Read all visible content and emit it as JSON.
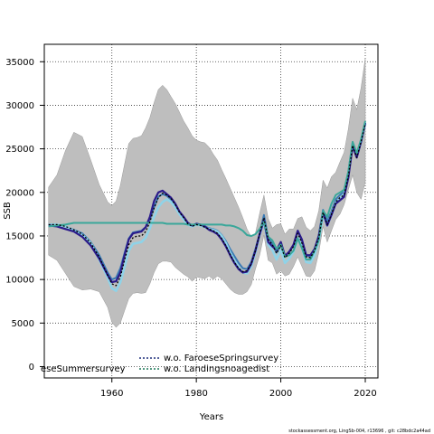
{
  "chart_data": {
    "type": "line",
    "xlabel": "Years",
    "ylabel": "SSB",
    "xlim": [
      1944,
      2023
    ],
    "ylim": [
      -1300,
      37000
    ],
    "x_ticks": [
      1960,
      1980,
      2000,
      2020
    ],
    "y_ticks": [
      0,
      5000,
      10000,
      15000,
      20000,
      25000,
      30000,
      35000
    ],
    "grid": true,
    "legend_position": "bottom-left",
    "legend_entries": [
      {
        "label": "eseSummersurvey",
        "color": "#3a7ab4",
        "style": "solid"
      },
      {
        "label": "w.o. FaroeseSpringsurvey",
        "color": "#1f2f7a",
        "style": "dotted"
      },
      {
        "label": "w.o. Landingsnoagedist",
        "color": "#1f7a5a",
        "style": "dotted"
      }
    ],
    "footer": "stockassessment.org, LingSb-004, r13696 , git: c28bdc2a44ad",
    "colors": {
      "band": "#bebebe",
      "base": "#000000",
      "summer": "#3a7ab4",
      "light": "#8fd3e8",
      "spring": "#2a1a8a",
      "teal": "#3aa79a"
    },
    "ci_upper": {
      "x": [
        1945,
        1947,
        1949,
        1951,
        1953,
        1955,
        1957,
        1959,
        1960,
        1961,
        1962,
        1963,
        1964,
        1965,
        1966,
        1967,
        1968,
        1969,
        1970,
        1971,
        1972,
        1973,
        1974,
        1975,
        1976,
        1977,
        1978,
        1979,
        1980,
        1981,
        1982,
        1983,
        1984,
        1985,
        1986,
        1987,
        1988,
        1989,
        1990,
        1991,
        1992,
        1993,
        1994,
        1995,
        1996,
        1997,
        1998,
        1999,
        2000,
        2001,
        2002,
        2003,
        2004,
        2005,
        2006,
        2007,
        2008,
        2009,
        2010,
        2011,
        2012,
        2013,
        2014,
        2015,
        2016,
        2017,
        2018,
        2019,
        2020
      ],
      "y": [
        20600,
        22000,
        24800,
        26900,
        26400,
        23700,
        20900,
        18900,
        18500,
        19000,
        20800,
        23200,
        25600,
        26200,
        26300,
        26500,
        27400,
        28600,
        30300,
        31800,
        32300,
        31800,
        31000,
        30200,
        29200,
        28200,
        27400,
        26500,
        26000,
        25800,
        25700,
        25200,
        24400,
        23700,
        22600,
        21600,
        20500,
        19400,
        18300,
        17100,
        15800,
        14900,
        15300,
        17600,
        19700,
        17000,
        15900,
        16300,
        16400,
        15200,
        15800,
        15800,
        17000,
        17200,
        16000,
        15600,
        16100,
        17900,
        21400,
        20500,
        21800,
        22300,
        23500,
        24600,
        27300,
        30800,
        29500,
        32000,
        35400
      ]
    },
    "ci_lower": {
      "x": [
        1945,
        1947,
        1949,
        1951,
        1953,
        1955,
        1957,
        1959,
        1960,
        1961,
        1962,
        1963,
        1964,
        1965,
        1966,
        1967,
        1968,
        1969,
        1970,
        1971,
        1972,
        1973,
        1974,
        1975,
        1976,
        1977,
        1978,
        1979,
        1980,
        1981,
        1982,
        1983,
        1984,
        1985,
        1986,
        1987,
        1988,
        1989,
        1990,
        1991,
        1992,
        1993,
        1994,
        1995,
        1996,
        1997,
        1998,
        1999,
        2000,
        2001,
        2002,
        2003,
        2004,
        2005,
        2006,
        2007,
        2008,
        2009,
        2010,
        2011,
        2012,
        2013,
        2014,
        2015,
        2016,
        2017,
        2018,
        2019,
        2020
      ],
      "y": [
        12800,
        12200,
        10700,
        9200,
        8800,
        8900,
        8600,
        6800,
        5100,
        4500,
        5000,
        6400,
        7800,
        8400,
        8500,
        8400,
        8500,
        9500,
        10800,
        11800,
        12100,
        12100,
        12000,
        11400,
        11000,
        10600,
        10300,
        9800,
        10300,
        10200,
        10100,
        10400,
        10000,
        10400,
        10100,
        9500,
        8900,
        8500,
        8300,
        8300,
        8600,
        9400,
        11200,
        12800,
        15100,
        12200,
        11900,
        10600,
        11000,
        10400,
        10600,
        11500,
        12600,
        11500,
        10400,
        10300,
        11000,
        13100,
        16100,
        14300,
        15600,
        16900,
        17500,
        18600,
        20300,
        22000,
        20000,
        19200,
        21200
      ]
    },
    "series": [
      {
        "key": "summer",
        "x": [
          1945,
          1947,
          1949,
          1951,
          1953,
          1955,
          1957,
          1959,
          1960,
          1961,
          1962,
          1963,
          1964,
          1965,
          1966,
          1967,
          1968,
          1969,
          1970,
          1971,
          1972,
          1973,
          1974,
          1975,
          1976,
          1977,
          1978,
          1979,
          1980,
          1981,
          1982,
          1983,
          1984,
          1985,
          1986,
          1987,
          1988,
          1989,
          1990,
          1991,
          1992,
          1993,
          1994,
          1995,
          1996,
          1997,
          1998,
          1999,
          2000,
          2001,
          2002,
          2003,
          2004,
          2005,
          2006,
          2007,
          2008,
          2009,
          2010,
          2011,
          2012,
          2013,
          2014,
          2015,
          2016,
          2017,
          2018,
          2019,
          2020
        ],
        "y": [
          16300,
          16300,
          16100,
          15700,
          15300,
          14300,
          12800,
          10800,
          10000,
          10200,
          11300,
          13000,
          14700,
          15400,
          15500,
          15600,
          16000,
          16900,
          18300,
          19500,
          19800,
          19600,
          19200,
          18600,
          17700,
          17100,
          16400,
          16200,
          16400,
          16300,
          16100,
          15900,
          15800,
          15600,
          15100,
          14400,
          13500,
          12700,
          11900,
          11300,
          11200,
          12000,
          13500,
          15300,
          17400,
          14800,
          14100,
          13100,
          14000,
          12700,
          13200,
          13900,
          15600,
          14500,
          12800,
          12600,
          13400,
          15100,
          18000,
          16700,
          17800,
          19200,
          19700,
          20100,
          22400,
          25700,
          24300,
          26000,
          28000
        ]
      },
      {
        "key": "light",
        "x": [
          1945,
          1947,
          1949,
          1951,
          1953,
          1955,
          1957,
          1959,
          1960,
          1961,
          1962,
          1963,
          1964,
          1965,
          1966,
          1967,
          1968,
          1969,
          1970,
          1971,
          1972,
          1973,
          1974,
          1975,
          1976,
          1977,
          1978,
          1979,
          1980,
          1981,
          1982,
          1983,
          1984,
          1985,
          1986,
          1987,
          1988,
          1989,
          1990,
          1991,
          1992,
          1993,
          1994,
          1995,
          1996,
          1997,
          1998,
          1999,
          2000,
          2001,
          2002,
          2003,
          2004,
          2005,
          2006,
          2007,
          2008,
          2009,
          2010,
          2011,
          2012,
          2013,
          2014,
          2015,
          2016,
          2017,
          2018,
          2019,
          2020
        ],
        "y": [
          16300,
          16300,
          16100,
          15600,
          15100,
          14200,
          12300,
          10200,
          9000,
          8700,
          9700,
          11400,
          13300,
          14100,
          14200,
          14300,
          14800,
          15900,
          17200,
          18300,
          18900,
          19200,
          18900,
          18300,
          17500,
          16900,
          16300,
          16100,
          16300,
          16200,
          16000,
          15800,
          15700,
          15500,
          15000,
          14200,
          13100,
          12200,
          11400,
          10800,
          10700,
          11500,
          13100,
          15100,
          16700,
          14000,
          13400,
          12300,
          13400,
          11900,
          12400,
          13200,
          14800,
          13700,
          12000,
          11900,
          12800,
          14500,
          17500,
          16200,
          17400,
          18800,
          19300,
          19800,
          22100,
          25500,
          24200,
          25800,
          27900
        ]
      },
      {
        "key": "spring",
        "x": [
          1945,
          1947,
          1949,
          1951,
          1953,
          1955,
          1957,
          1959,
          1960,
          1961,
          1962,
          1963,
          1964,
          1965,
          1966,
          1967,
          1968,
          1969,
          1970,
          1971,
          1972,
          1973,
          1974,
          1975,
          1976,
          1977,
          1978,
          1979,
          1980,
          1981,
          1982,
          1983,
          1984,
          1985,
          1986,
          1987,
          1988,
          1989,
          1990,
          1991,
          1992,
          1993,
          1994,
          1995,
          1996,
          1997,
          1998,
          1999,
          2000,
          2001,
          2002,
          2003,
          2004,
          2005,
          2006,
          2007,
          2008,
          2009,
          2010,
          2011,
          2012,
          2013,
          2014,
          2015,
          2016,
          2017,
          2018,
          2019,
          2020
        ],
        "y": [
          16200,
          16100,
          15800,
          15500,
          14900,
          13900,
          12400,
          10500,
          9700,
          9800,
          10800,
          12800,
          14600,
          15300,
          15400,
          15500,
          16000,
          17200,
          19000,
          20000,
          20200,
          19800,
          19400,
          18700,
          17800,
          17200,
          16500,
          16200,
          16400,
          16300,
          16100,
          15700,
          15500,
          15200,
          14600,
          13800,
          12800,
          11900,
          11200,
          10800,
          10900,
          11800,
          13300,
          15200,
          16800,
          14300,
          13800,
          13400,
          14300,
          12700,
          13200,
          14000,
          15600,
          14600,
          12800,
          12800,
          13500,
          15000,
          17700,
          16200,
          17400,
          18700,
          19100,
          19500,
          21700,
          25300,
          24000,
          25800,
          28000
        ]
      },
      {
        "key": "teal",
        "x": [
          1945,
          1947,
          1949,
          1951,
          1953,
          1955,
          1957,
          1959,
          1960,
          1961,
          1962,
          1963,
          1964,
          1965,
          1966,
          1967,
          1968,
          1969,
          1970,
          1971,
          1972,
          1973,
          1974,
          1975,
          1976,
          1977,
          1978,
          1979,
          1980,
          1981,
          1982,
          1983,
          1984,
          1985,
          1986,
          1987,
          1988,
          1989,
          1990,
          1991,
          1992,
          1993,
          1994,
          1995,
          1996,
          1997,
          1998,
          1999,
          2000,
          2001,
          2002,
          2003,
          2004,
          2005,
          2006,
          2007,
          2008,
          2009,
          2010,
          2011,
          2012,
          2013,
          2014,
          2015,
          2016,
          2017,
          2018,
          2019,
          2020
        ],
        "y": [
          16100,
          16200,
          16300,
          16500,
          16500,
          16500,
          16500,
          16500,
          16500,
          16500,
          16500,
          16500,
          16500,
          16500,
          16500,
          16500,
          16500,
          16500,
          16500,
          16500,
          16500,
          16400,
          16400,
          16400,
          16400,
          16400,
          16300,
          16300,
          16300,
          16300,
          16300,
          16300,
          16300,
          16300,
          16300,
          16200,
          16200,
          16100,
          15900,
          15600,
          15100,
          15000,
          15200,
          15800,
          16600,
          14900,
          14500,
          13500,
          14000,
          12600,
          12800,
          13300,
          14700,
          13600,
          12300,
          12300,
          13300,
          14500,
          17900,
          17200,
          18700,
          19700,
          20000,
          20300,
          22400,
          25800,
          24500,
          26100,
          28200
        ]
      },
      {
        "key": "base",
        "x": [
          1945,
          1947,
          1949,
          1951,
          1953,
          1955,
          1957,
          1959,
          1960,
          1961,
          1962,
          1963,
          1964,
          1965,
          1966,
          1967,
          1968,
          1969,
          1970,
          1971,
          1972,
          1973,
          1974,
          1975,
          1976,
          1977,
          1978,
          1979,
          1980,
          1981,
          1982,
          1983,
          1984,
          1985,
          1986,
          1987,
          1988,
          1989,
          1990,
          1991,
          1992,
          1993,
          1994,
          1995,
          1996,
          1997,
          1998,
          1999,
          2000,
          2001,
          2002,
          2003,
          2004,
          2005,
          2006,
          2007,
          2008,
          2009,
          2010,
          2011,
          2012,
          2013,
          2014,
          2015,
          2016,
          2017,
          2018,
          2019,
          2020
        ],
        "y": [
          16300,
          16300,
          16100,
          15700,
          15200,
          14200,
          12600,
          10500,
          9500,
          9300,
          10300,
          12200,
          14000,
          14800,
          15000,
          15000,
          15500,
          16600,
          18200,
          19400,
          19900,
          19700,
          19300,
          18600,
          17700,
          17100,
          16400,
          16100,
          16300,
          16200,
          16000,
          15800,
          15600,
          15300,
          14700,
          13900,
          12900,
          12000,
          11300,
          10900,
          11000,
          11800,
          13300,
          15300,
          17100,
          14600,
          14000,
          13000,
          13900,
          12500,
          13000,
          13800,
          15300,
          14200,
          12600,
          12500,
          13300,
          14800,
          17700,
          16300,
          17500,
          18900,
          19400,
          19700,
          21900,
          25400,
          24000,
          25800,
          27900
        ]
      }
    ]
  }
}
